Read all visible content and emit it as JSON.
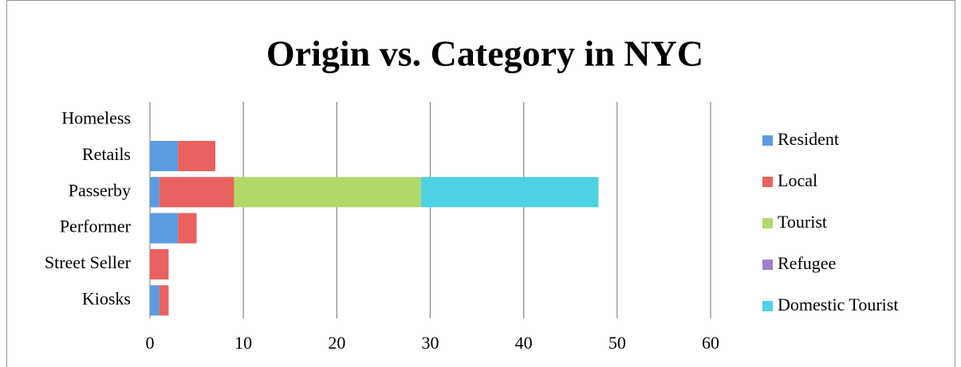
{
  "chart_data": {
    "type": "stacked-barh",
    "title": "Origin vs. Category in NYC",
    "categories": [
      "Homeless",
      "Retails",
      "Passerby",
      "Performer",
      "Street Seller",
      "Kiosks"
    ],
    "series": [
      {
        "name": "Resident",
        "color": "#5b9be0",
        "values": [
          0,
          3,
          1,
          3,
          0,
          1
        ]
      },
      {
        "name": "Local",
        "color": "#e9625f",
        "values": [
          0,
          4,
          8,
          2,
          2,
          1
        ]
      },
      {
        "name": "Tourist",
        "color": "#b3d86a",
        "values": [
          0,
          0,
          20,
          0,
          0,
          0
        ]
      },
      {
        "name": "Refugee",
        "color": "#9f80c8",
        "values": [
          0,
          0,
          0,
          0,
          0,
          0
        ]
      },
      {
        "name": "Domestic Tourist",
        "color": "#4fd1e4",
        "values": [
          0,
          0,
          19,
          0,
          0,
          0
        ]
      }
    ],
    "xlim": [
      0,
      60
    ],
    "xticks": [
      0,
      10,
      20,
      30,
      40,
      50,
      60
    ],
    "grid": true,
    "legend": "right"
  }
}
